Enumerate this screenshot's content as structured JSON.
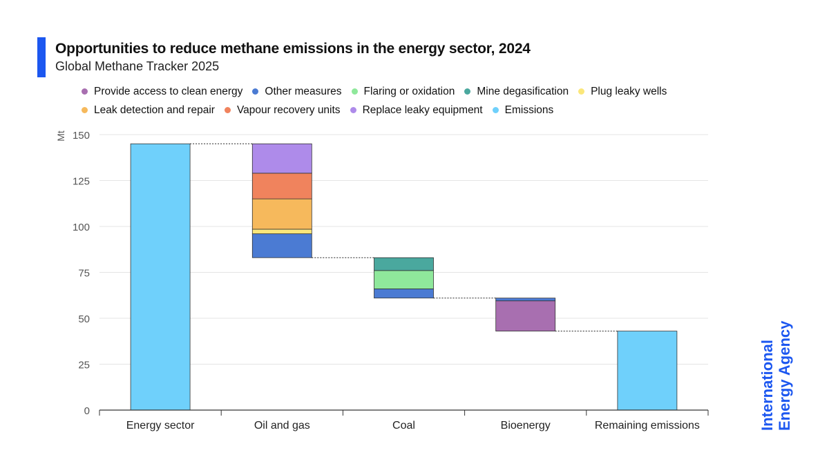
{
  "header": {
    "title": "Opportunities to reduce methane emissions in the energy sector, 2024",
    "subtitle": "Global Methane Tracker 2025",
    "accent_color": "#1c57f0"
  },
  "brand": {
    "line1": "International",
    "line2": "Energy Agency",
    "color": "#1c57f0"
  },
  "legend": {
    "items": [
      {
        "label": "Provide access to clean energy",
        "color": "#a86fb0"
      },
      {
        "label": "Other measures",
        "color": "#4b7bd3"
      },
      {
        "label": "Flaring or oxidation",
        "color": "#8fe89b"
      },
      {
        "label": "Mine degasification",
        "color": "#4aa89e"
      },
      {
        "label": "Plug leaky wells",
        "color": "#fbe77a"
      },
      {
        "label": "Leak detection and repair",
        "color": "#f6b95c"
      },
      {
        "label": "Vapour recovery units",
        "color": "#f0835d"
      },
      {
        "label": "Replace leaky equipment",
        "color": "#ae8bea"
      },
      {
        "label": "Emissions",
        "color": "#6fd0fb"
      }
    ]
  },
  "chart_data": {
    "type": "bar",
    "subtype": "waterfall",
    "ylabel": "Mt",
    "ylim": [
      0,
      150
    ],
    "yticks": [
      0,
      25,
      50,
      75,
      100,
      125,
      150
    ],
    "grid": true,
    "legend_position": "top",
    "categories": [
      "Energy sector",
      "Oil and gas",
      "Coal",
      "Bioenergy",
      "Remaining emissions"
    ],
    "bars": [
      {
        "category": "Energy sector",
        "segments": [
          {
            "series": "Emissions",
            "from": 0,
            "to": 145
          }
        ]
      },
      {
        "category": "Oil and gas",
        "segments": [
          {
            "series": "Other measures",
            "from": 83,
            "to": 96
          },
          {
            "series": "Plug leaky wells",
            "from": 96,
            "to": 98.5
          },
          {
            "series": "Leak detection and repair",
            "from": 98.5,
            "to": 115
          },
          {
            "series": "Vapour recovery units",
            "from": 115,
            "to": 129
          },
          {
            "series": "Replace leaky equipment",
            "from": 129,
            "to": 145
          }
        ]
      },
      {
        "category": "Coal",
        "segments": [
          {
            "series": "Other measures",
            "from": 61,
            "to": 66
          },
          {
            "series": "Flaring or oxidation",
            "from": 66,
            "to": 76
          },
          {
            "series": "Mine degasification",
            "from": 76,
            "to": 83
          }
        ]
      },
      {
        "category": "Bioenergy",
        "segments": [
          {
            "series": "Provide access to clean energy",
            "from": 43,
            "to": 59.5
          },
          {
            "series": "Other measures",
            "from": 59.5,
            "to": 61
          }
        ]
      },
      {
        "category": "Remaining emissions",
        "segments": [
          {
            "series": "Emissions",
            "from": 0,
            "to": 43
          }
        ]
      }
    ],
    "connectors": [
      145,
      83,
      61,
      43
    ]
  }
}
